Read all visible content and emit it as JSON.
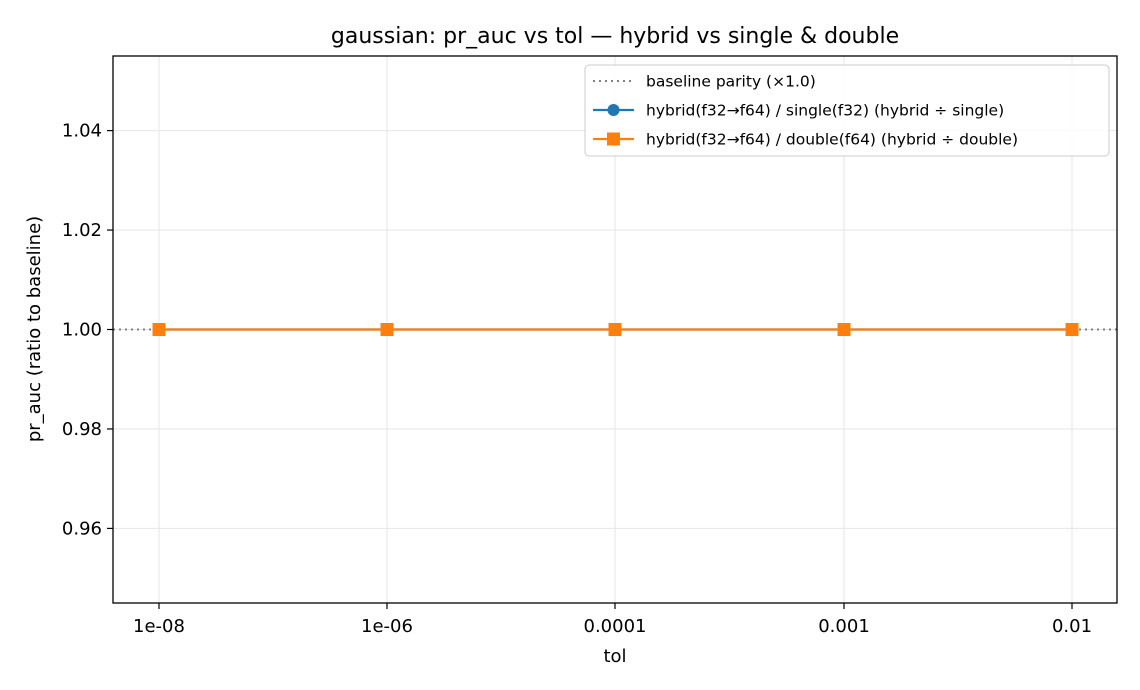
{
  "chart_data": {
    "type": "line",
    "title": "gaussian: pr_auc vs tol — hybrid vs single & double",
    "xlabel": "tol",
    "ylabel": "pr_auc (ratio to baseline)",
    "categories": [
      "1e-08",
      "1e-06",
      "0.0001",
      "0.001",
      "0.01"
    ],
    "ylim": [
      0.945,
      1.055
    ],
    "yticks": [
      0.96,
      0.98,
      1.0,
      1.02,
      1.04
    ],
    "ytick_labels": [
      "0.96",
      "0.98",
      "1.00",
      "1.02",
      "1.04"
    ],
    "grid": true,
    "legend_position": "top-right",
    "baseline": {
      "name": "baseline parity (×1.0)",
      "value": 1.0,
      "color": "#808080",
      "style": "dotted"
    },
    "series": [
      {
        "name": "hybrid(f32→f64) / single(f32)  (hybrid ÷ single)",
        "values": [
          1.0,
          1.0,
          1.0,
          1.0,
          1.0
        ],
        "color": "#1f77b4",
        "marker": "circle"
      },
      {
        "name": "hybrid(f32→f64) / double(f64)  (hybrid ÷ double)",
        "values": [
          1.0,
          1.0,
          1.0,
          1.0,
          1.0
        ],
        "color": "#ff7f0e",
        "marker": "square"
      }
    ]
  }
}
